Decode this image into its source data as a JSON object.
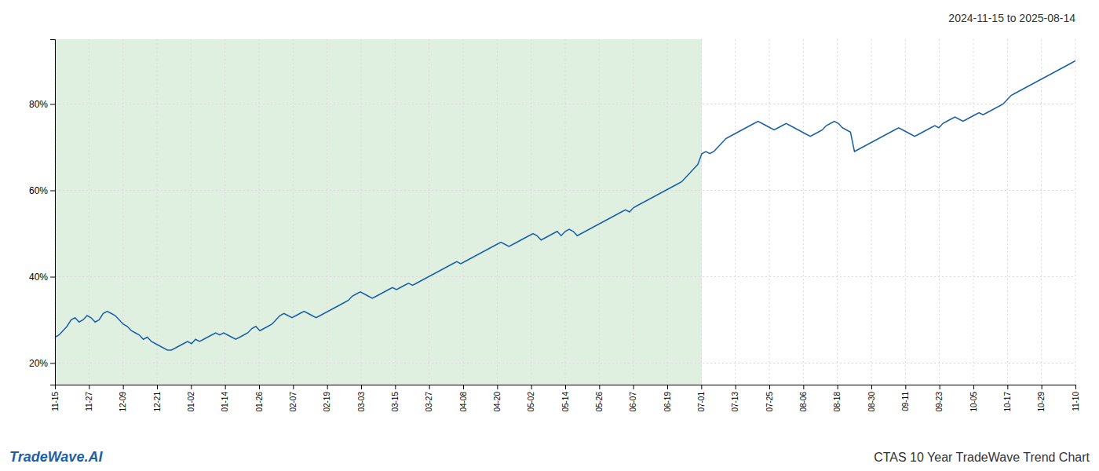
{
  "chart_data": {
    "type": "line",
    "title": "2024-11-15 to 2025-08-14",
    "annotations": [
      {
        "text": "TradeWave.AI",
        "color": "#1a5fa8"
      },
      {
        "text": "CTAS 10 Year TradeWave Trend Chart"
      }
    ],
    "color": "#1a5fa8",
    "grid": true,
    "ylim": [
      15,
      95
    ],
    "yticks": [
      {
        "value": 20,
        "label": "20%"
      },
      {
        "value": 40,
        "label": "40%"
      },
      {
        "value": 60,
        "label": "60%"
      },
      {
        "value": 80,
        "label": "80%"
      }
    ],
    "xlim": [
      0,
      254
    ],
    "xticks": [
      {
        "value": 0,
        "label": "11-15"
      },
      {
        "value": 8.466666666666667,
        "label": "11-27"
      },
      {
        "value": 16.933333333333334,
        "label": "12-09"
      },
      {
        "value": 25.4,
        "label": "12-21"
      },
      {
        "value": 33.86666666666667,
        "label": "01-02"
      },
      {
        "value": 42.333333333333336,
        "label": "01-14"
      },
      {
        "value": 50.8,
        "label": "01-26"
      },
      {
        "value": 59.266666666666666,
        "label": "02-07"
      },
      {
        "value": 67.73333333333333,
        "label": "02-19"
      },
      {
        "value": 76.2,
        "label": "03-03"
      },
      {
        "value": 84.66666666666667,
        "label": "03-15"
      },
      {
        "value": 93.13333333333334,
        "label": "03-27"
      },
      {
        "value": 101.6,
        "label": "04-08"
      },
      {
        "value": 110.06666666666666,
        "label": "04-20"
      },
      {
        "value": 118.53333333333333,
        "label": "05-02"
      },
      {
        "value": 127,
        "label": "05-14"
      },
      {
        "value": 135.46666666666667,
        "label": "05-26"
      },
      {
        "value": 143.93333333333334,
        "label": "06-07"
      },
      {
        "value": 152.4,
        "label": "06-19"
      },
      {
        "value": 160.86666666666667,
        "label": "07-01"
      },
      {
        "value": 169.33333333333334,
        "label": "07-13"
      },
      {
        "value": 177.8,
        "label": "07-25"
      },
      {
        "value": 186.26666666666668,
        "label": "08-06"
      },
      {
        "value": 194.73333333333332,
        "label": "08-18"
      },
      {
        "value": 203.2,
        "label": "08-30"
      },
      {
        "value": 211.66666666666666,
        "label": "09-11"
      },
      {
        "value": 220.13333333333333,
        "label": "09-23"
      },
      {
        "value": 228.6,
        "label": "10-05"
      },
      {
        "value": 237.06666666666666,
        "label": "10-17"
      },
      {
        "value": 245.53333333333333,
        "label": "10-29"
      },
      {
        "value": 254,
        "label": "11-10"
      }
    ],
    "shaded_region": {
      "xlim": [
        0,
        161
      ],
      "color": "#dff0e0"
    },
    "values": [
      26.0,
      26.5,
      27.5,
      28.5,
      30.0,
      30.5,
      29.5,
      30.0,
      31.0,
      30.5,
      29.5,
      30.0,
      31.5,
      32.0,
      31.5,
      31.0,
      30.0,
      29.0,
      28.5,
      27.5,
      27.0,
      26.5,
      25.5,
      26.0,
      25.0,
      24.5,
      24.0,
      23.5,
      23.0,
      23.0,
      23.5,
      24.0,
      24.5,
      25.0,
      24.5,
      25.5,
      25.0,
      25.5,
      26.0,
      26.5,
      27.0,
      26.5,
      27.0,
      26.5,
      26.0,
      25.5,
      26.0,
      26.5,
      27.0,
      28.0,
      28.5,
      27.5,
      28.0,
      28.5,
      29.0,
      30.0,
      31.0,
      31.5,
      31.0,
      30.5,
      31.0,
      31.5,
      32.0,
      31.5,
      31.0,
      30.5,
      31.0,
      31.5,
      32.0,
      32.5,
      33.0,
      33.5,
      34.0,
      34.5,
      35.5,
      36.0,
      36.5,
      36.0,
      35.5,
      35.0,
      35.5,
      36.0,
      36.5,
      37.0,
      37.5,
      37.0,
      37.5,
      38.0,
      38.5,
      38.0,
      38.5,
      39.0,
      39.5,
      40.0,
      40.5,
      41.0,
      41.5,
      42.0,
      42.5,
      43.0,
      43.5,
      43.0,
      43.5,
      44.0,
      44.5,
      45.0,
      45.5,
      46.0,
      46.5,
      47.0,
      47.5,
      48.0,
      47.5,
      47.0,
      47.5,
      48.0,
      48.5,
      49.0,
      49.5,
      50.0,
      49.5,
      48.5,
      49.0,
      49.5,
      50.0,
      50.5,
      49.5,
      50.5,
      51.0,
      50.5,
      49.5,
      50.0,
      50.5,
      51.0,
      51.5,
      52.0,
      52.5,
      53.0,
      53.5,
      54.0,
      54.5,
      55.0,
      55.5,
      55.0,
      56.0,
      56.5,
      57.0,
      57.5,
      58.0,
      58.5,
      59.0,
      59.5,
      60.0,
      60.5,
      61.0,
      61.5,
      62.0,
      63.0,
      64.0,
      65.0,
      66.0,
      68.5,
      69.0,
      68.5,
      69.0,
      70.0,
      71.0,
      72.0,
      72.5,
      73.0,
      73.5,
      74.0,
      74.5,
      75.0,
      75.5,
      76.0,
      75.5,
      75.0,
      74.5,
      74.0,
      74.5,
      75.0,
      75.5,
      75.0,
      74.5,
      74.0,
      73.5,
      73.0,
      72.5,
      73.0,
      73.5,
      74.0,
      75.0,
      75.5,
      76.0,
      75.5,
      74.5,
      74.0,
      73.5,
      69.0,
      69.5,
      70.0,
      70.5,
      71.0,
      71.5,
      72.0,
      72.5,
      73.0,
      73.5,
      74.0,
      74.5,
      74.0,
      73.5,
      73.0,
      72.5,
      73.0,
      73.5,
      74.0,
      74.5,
      75.0,
      74.5,
      75.5,
      76.0,
      76.5,
      77.0,
      76.5,
      76.0,
      76.5,
      77.0,
      77.5,
      78.0,
      77.5,
      78.0,
      78.5,
      79.0,
      79.5,
      80.0,
      81.0,
      82.0,
      82.5,
      83.0,
      83.5,
      84.0,
      84.5,
      85.0,
      85.5,
      86.0,
      86.5,
      87.0,
      87.5,
      88.0,
      88.5,
      89.0,
      89.5,
      90.0
    ]
  }
}
